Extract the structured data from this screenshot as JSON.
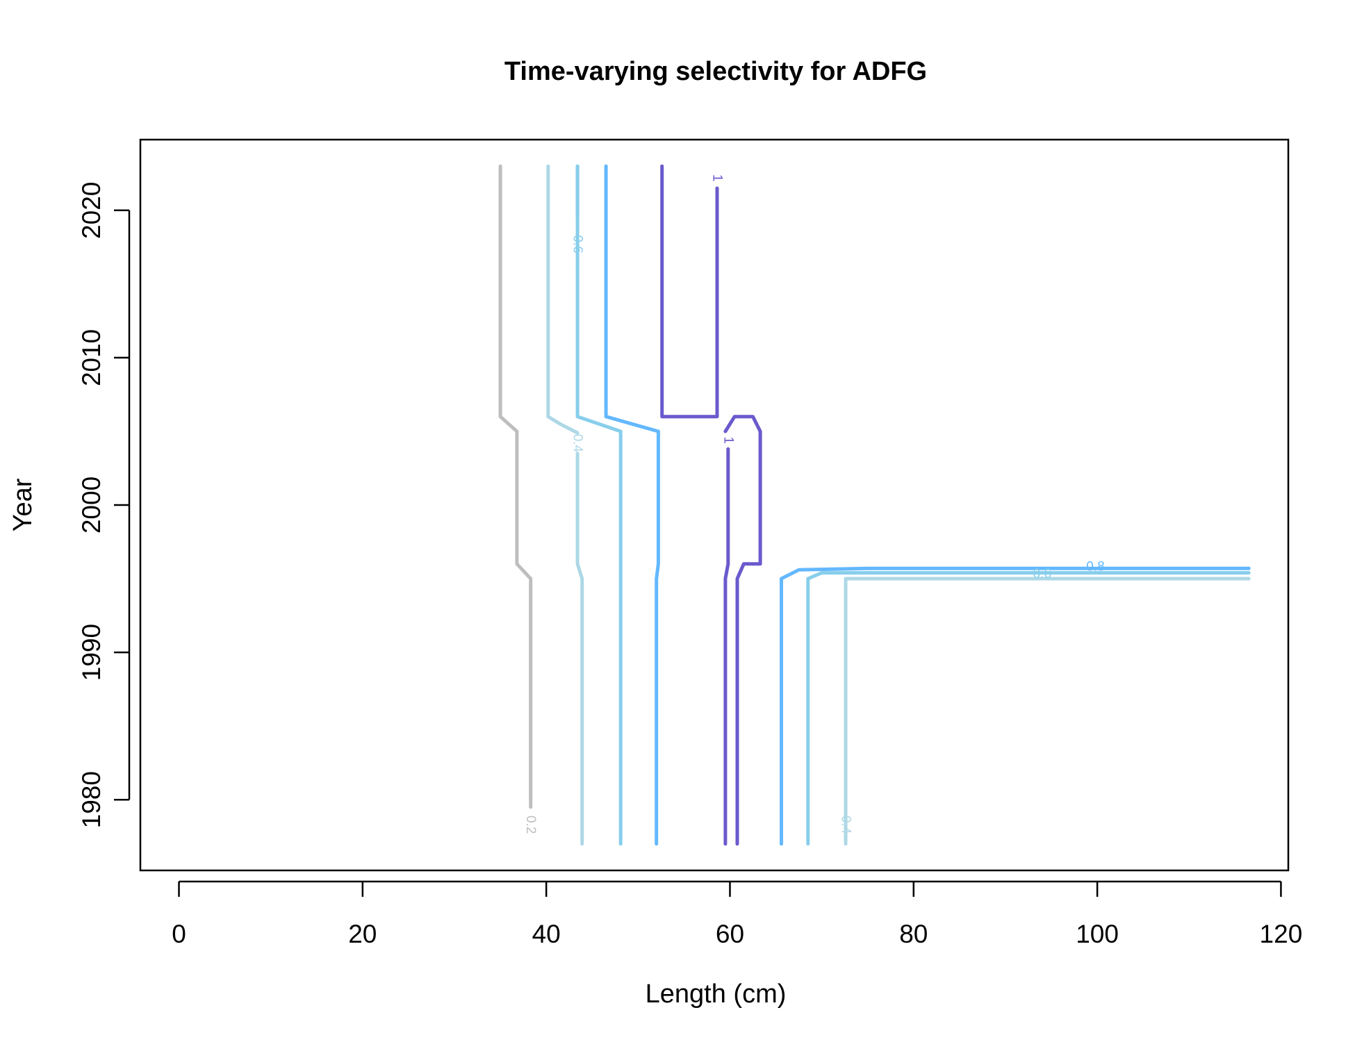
{
  "chart_data": {
    "type": "contour",
    "title": "Time-varying selectivity for ADFG",
    "xlabel": "Length (cm)",
    "ylabel": "Year",
    "xlim": [
      -4.2,
      120.8
    ],
    "ylim": [
      1975.2,
      2024.8
    ],
    "xticks": [
      0,
      20,
      40,
      60,
      80,
      100,
      120
    ],
    "yticks": [
      1980,
      1990,
      2000,
      2010,
      2020
    ],
    "grid": false,
    "legend": "none",
    "colors": {
      "0.2": "#bebebe",
      "0.4": "#add8e6",
      "0.6": "#87ceeb",
      "0.8": "#63b8ff",
      "1": "#6a5acd"
    },
    "contours": [
      {
        "level": "0.2",
        "label": "0.2",
        "color": "#bebebe",
        "points": [
          [
            35.0,
            2023
          ],
          [
            35.0,
            2006
          ],
          [
            36.8,
            2005
          ],
          [
            36.8,
            1996
          ],
          [
            38.3,
            1995
          ],
          [
            38.3,
            1979.5
          ]
        ]
      },
      {
        "level": "0.4",
        "label": "",
        "color": "#add8e6",
        "points": [
          [
            40.2,
            2023
          ],
          [
            40.2,
            2006
          ],
          [
            41.5,
            2005.5
          ],
          [
            43.4,
            2004.9
          ]
        ]
      },
      {
        "level": "0.4",
        "label": "0.4",
        "color": "#add8e6",
        "points": [
          [
            43.4,
            2003.5
          ],
          [
            43.4,
            1996
          ],
          [
            43.9,
            1995
          ],
          [
            43.9,
            1977
          ]
        ]
      },
      {
        "level": "0.6",
        "label": "0.6",
        "color": "#87ceeb",
        "points": [
          [
            43.4,
            2023
          ],
          [
            43.4,
            2016
          ]
        ]
      },
      {
        "level": "0.6",
        "label": "",
        "color": "#87ceeb",
        "points": [
          [
            43.4,
            2019.5
          ],
          [
            43.4,
            2023
          ]
        ]
      },
      {
        "level": "0.6",
        "label": "",
        "color": "#87ceeb",
        "points": [
          [
            43.4,
            2016
          ],
          [
            43.4,
            2006
          ],
          [
            48.1,
            2005
          ],
          [
            48.1,
            1977
          ]
        ]
      },
      {
        "level": "0.8",
        "label": "",
        "color": "#63b8ff",
        "points": [
          [
            46.5,
            2023
          ],
          [
            46.5,
            2006
          ],
          [
            52.2,
            2005
          ],
          [
            52.2,
            1996
          ],
          [
            52.0,
            1995
          ],
          [
            52.0,
            1977
          ]
        ]
      },
      {
        "level": "1",
        "label": "1",
        "color": "#6a5acd",
        "points": [
          [
            58.6,
            2021.5
          ],
          [
            58.6,
            2006
          ],
          [
            52.6,
            2006
          ],
          [
            52.6,
            2023
          ]
        ]
      },
      {
        "level": "1",
        "label": "1",
        "color": "#6a5acd",
        "points": [
          [
            59.8,
            2003.8
          ],
          [
            59.8,
            1996
          ],
          [
            59.5,
            1995
          ],
          [
            59.5,
            1977
          ]
        ]
      },
      {
        "level": "1",
        "label": "",
        "color": "#6a5acd",
        "points": [
          [
            59.5,
            2005
          ],
          [
            60.5,
            2006
          ],
          [
            62.5,
            2006
          ],
          [
            63.3,
            2005
          ],
          [
            63.3,
            1996
          ],
          [
            61.5,
            1996
          ],
          [
            60.8,
            1995
          ],
          [
            60.8,
            1977
          ]
        ]
      },
      {
        "level": "0.8",
        "label": "0.8",
        "color": "#63b8ff",
        "points": [
          [
            65.6,
            1977
          ],
          [
            65.6,
            1995
          ],
          [
            67.5,
            1995.6
          ],
          [
            75.0,
            1995.7
          ],
          [
            116.5,
            1995.7
          ]
        ]
      },
      {
        "level": "0.6",
        "label": "0.6",
        "color": "#87ceeb",
        "points": [
          [
            68.5,
            1977
          ],
          [
            68.5,
            1995
          ],
          [
            70.0,
            1995.4
          ],
          [
            75.0,
            1995.4
          ],
          [
            116.5,
            1995.4
          ]
        ]
      },
      {
        "level": "0.4",
        "label": "0.4",
        "color": "#add8e6",
        "points": [
          [
            72.6,
            1977
          ],
          [
            72.6,
            1995
          ],
          [
            116.5,
            1995
          ]
        ]
      }
    ],
    "labels": [
      {
        "text": "0.2",
        "x": 38.3,
        "y": 1978.3,
        "color": "#bebebe",
        "rotate": 90
      },
      {
        "text": "0.4",
        "x": 43.4,
        "y": 2004.2,
        "color": "#add8e6",
        "rotate": 90
      },
      {
        "text": "0.6",
        "x": 43.4,
        "y": 2017.7,
        "color": "#87ceeb",
        "rotate": 90
      },
      {
        "text": "1",
        "x": 58.6,
        "y": 2022.2,
        "color": "#6a5acd",
        "rotate": 90
      },
      {
        "text": "1",
        "x": 59.8,
        "y": 2004.4,
        "color": "#6a5acd",
        "rotate": 90
      },
      {
        "text": "0.4",
        "x": 72.6,
        "y": 1978.3,
        "color": "#add8e6",
        "rotate": 90
      },
      {
        "text": "0.6",
        "x": 94.0,
        "y": 1995.3,
        "color": "#87ceeb",
        "rotate": 0
      },
      {
        "text": "0.8",
        "x": 99.8,
        "y": 1995.8,
        "color": "#63b8ff",
        "rotate": 0
      }
    ]
  }
}
